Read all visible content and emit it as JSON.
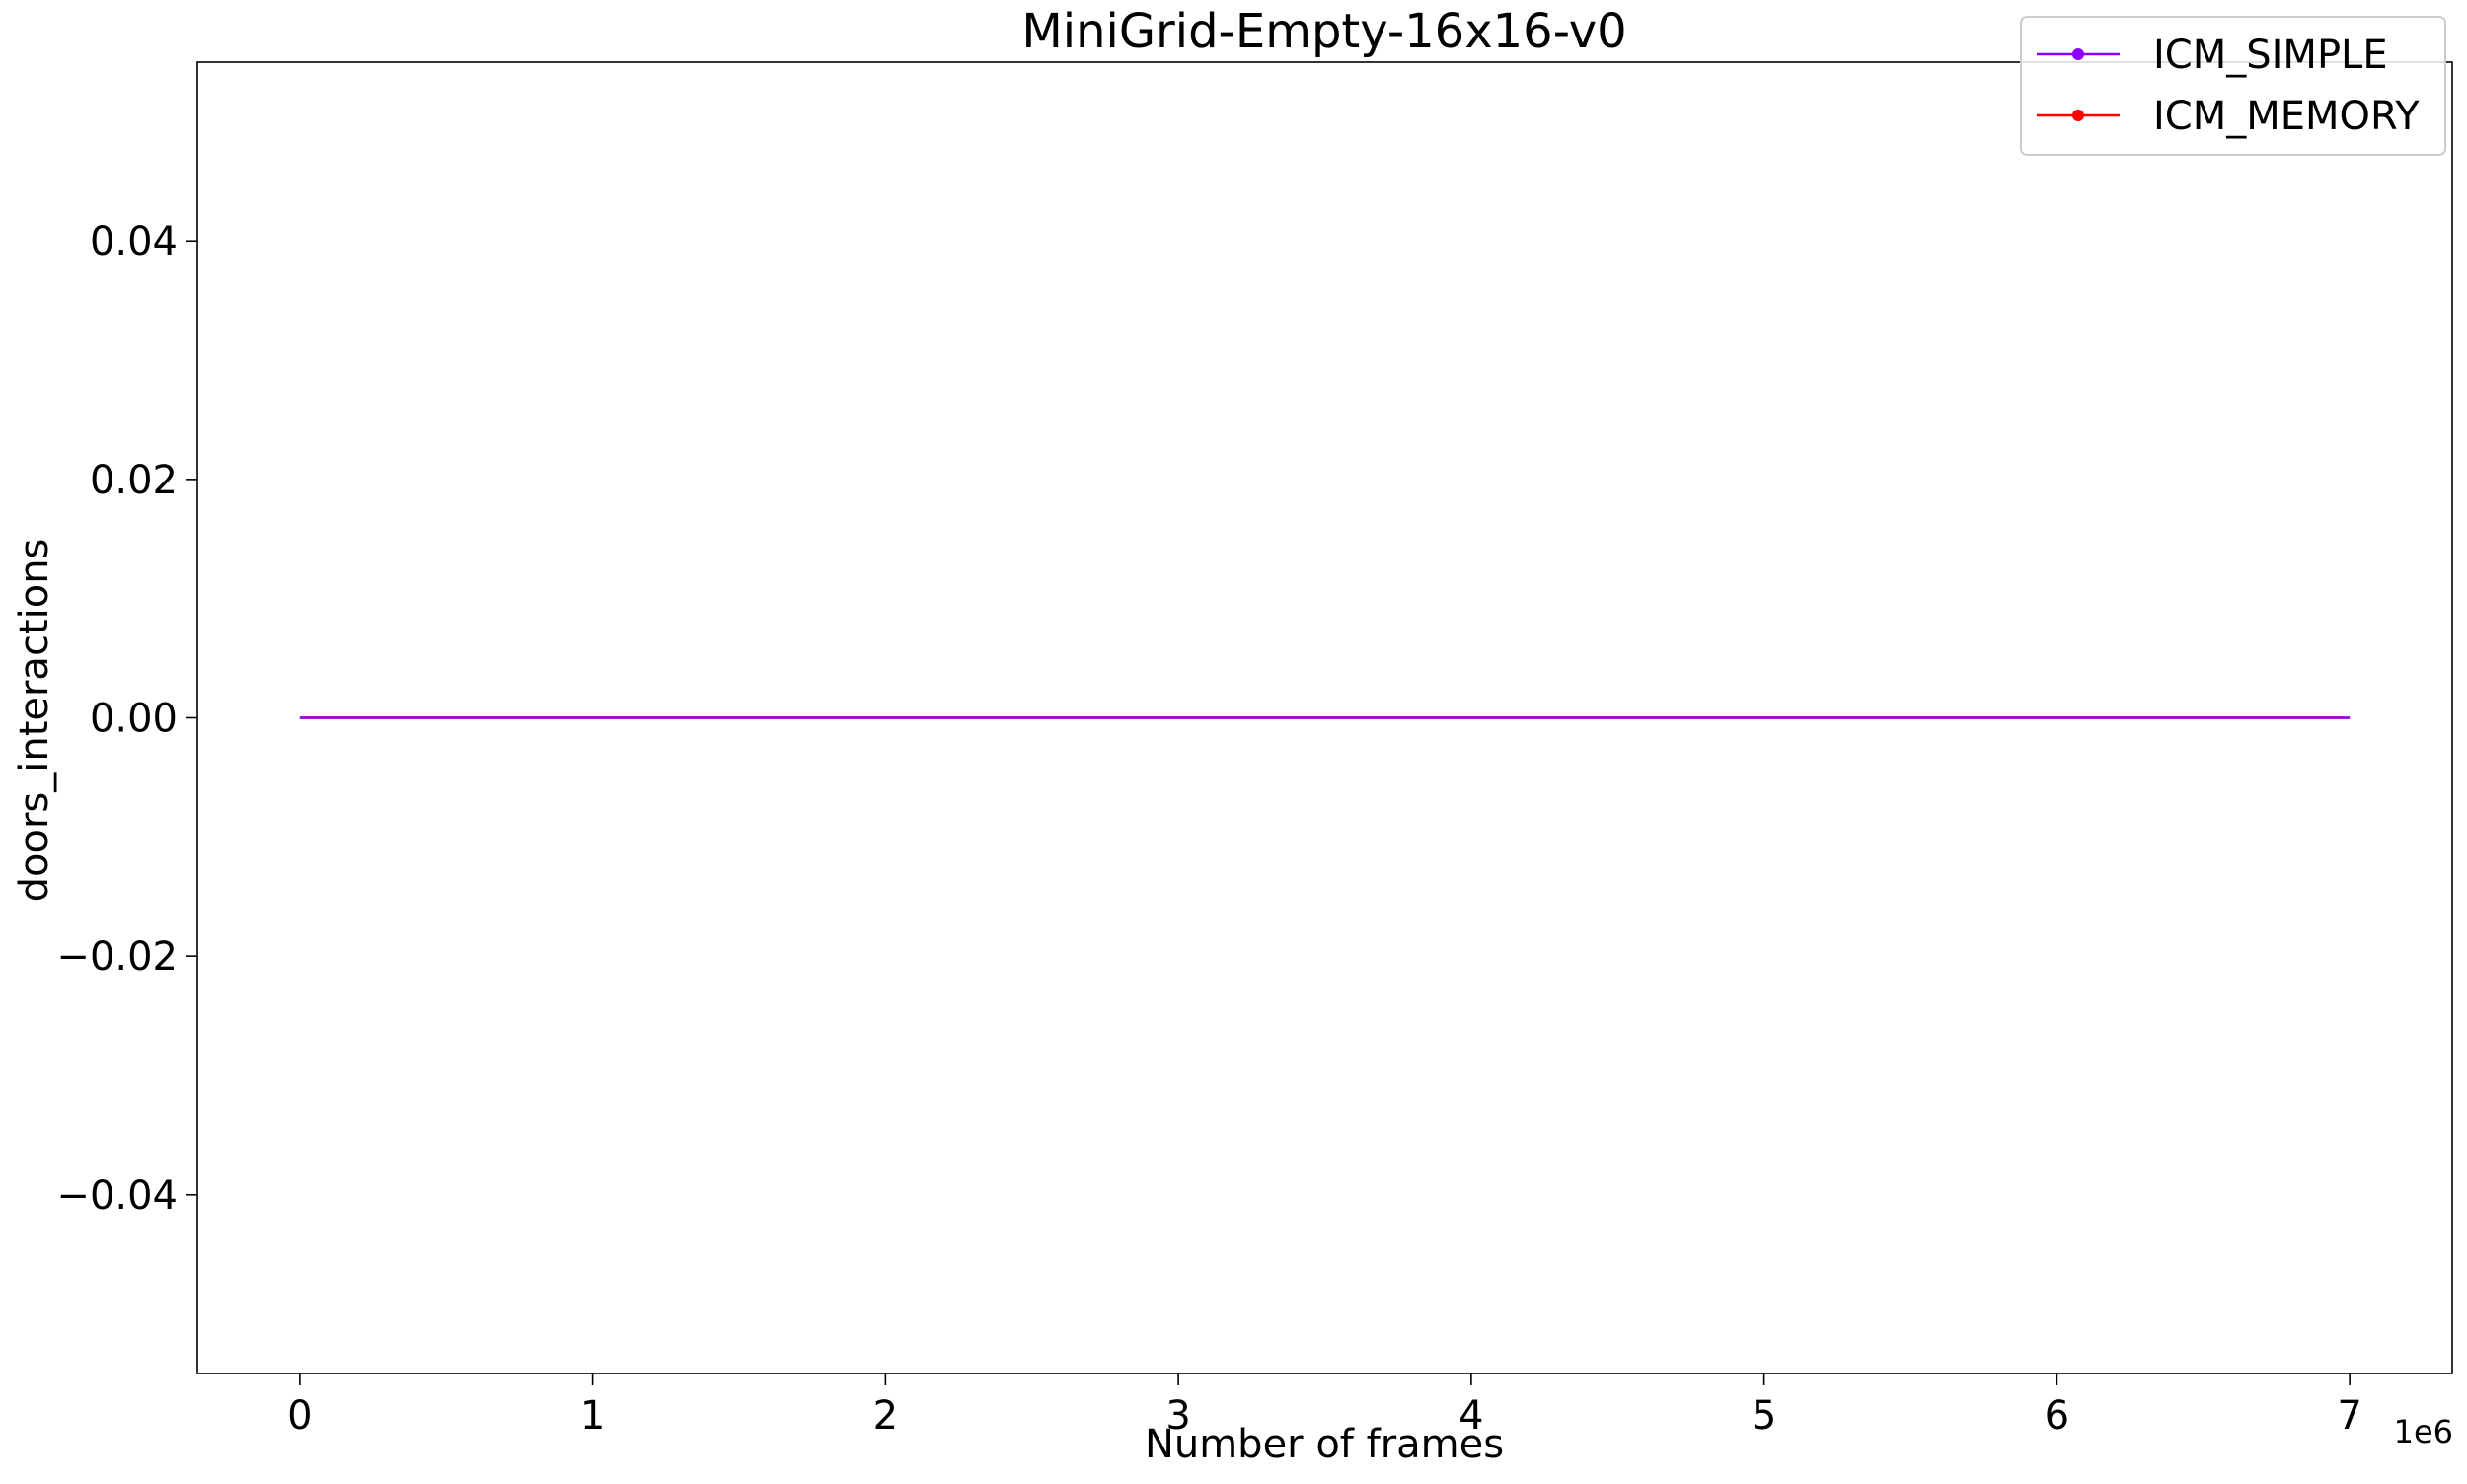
{
  "chart_data": {
    "type": "line",
    "title": "MiniGrid-Empty-16x16-v0",
    "xlabel": "Number of frames",
    "ylabel": "doors_interactions",
    "x_offset_label": "1e6",
    "xlim": [
      -0.35,
      7.35
    ],
    "ylim": [
      -0.055,
      0.055
    ],
    "x_ticks": [
      0,
      1,
      2,
      3,
      4,
      5,
      6,
      7
    ],
    "x_tick_labels": [
      "0",
      "1",
      "2",
      "3",
      "4",
      "5",
      "6",
      "7"
    ],
    "y_ticks": [
      0.04,
      0.02,
      0.0,
      -0.02,
      -0.04
    ],
    "y_tick_labels": [
      "0.04",
      "0.02",
      "0.00",
      "−0.02",
      "−0.04"
    ],
    "grid": false,
    "legend_position": "top-right",
    "series": [
      {
        "name": "ICM_SIMPLE",
        "color": "#8b00ff",
        "x": [
          0,
          7
        ],
        "y": [
          0,
          0
        ]
      },
      {
        "name": "ICM_MEMORY",
        "color": "#ff0000",
        "x": [
          0,
          7
        ],
        "y": [
          0,
          0
        ]
      }
    ]
  }
}
